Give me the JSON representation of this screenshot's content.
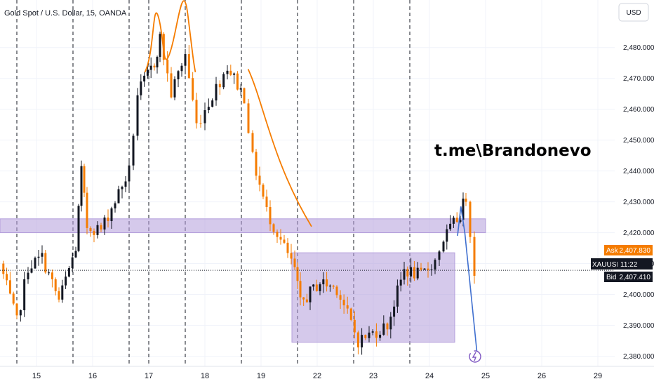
{
  "header": {
    "title": "Gold Spot / U.S. Dollar, 15, OANDA",
    "currency_label": "USD"
  },
  "annotation": {
    "text": "t.me\\Brandonevo"
  },
  "price_badges": {
    "ask_label": "Ask",
    "ask_value": "2,407.830",
    "symbol_label": "XAUUSD",
    "countdown": "11:22",
    "bid_label": "Bid",
    "bid_value": "2,407.410"
  },
  "colors": {
    "up_candle": "#131722",
    "down_candle": "#f57c00",
    "zone_fill": "#b39ddb",
    "arc_line": "#f57c00",
    "arrow_line": "#3f6fcf",
    "ask_badge": "#f57c00",
    "bid_badge": "#131722",
    "pattern_icon": "#7e57c2"
  },
  "chart_data": {
    "type": "candlestick",
    "title": "Gold Spot / U.S. Dollar, 15, OANDA",
    "currency": "USD",
    "y_ticks": [
      2380,
      2390,
      2400,
      2410,
      2420,
      2430,
      2440,
      2450,
      2460,
      2470,
      2480
    ],
    "y_tick_labels": [
      "2,380.000",
      "2,390.000",
      "2,400.000",
      "2,410.000",
      "2,420.000",
      "2,430.000",
      "2,440.000",
      "2,450.000",
      "2,460.000",
      "2,470.000",
      "2,480.000"
    ],
    "ylim": [
      2376.7,
      2495.4
    ],
    "x_labels": [
      {
        "label": "15",
        "t": 0.65
      },
      {
        "label": "16",
        "t": 1.65
      },
      {
        "label": "17",
        "t": 2.65
      },
      {
        "label": "18",
        "t": 3.65
      },
      {
        "label": "19",
        "t": 4.65
      },
      {
        "label": "22",
        "t": 5.65
      },
      {
        "label": "23",
        "t": 6.65
      },
      {
        "label": "24",
        "t": 7.65
      },
      {
        "label": "25",
        "t": 8.65
      },
      {
        "label": "26",
        "t": 9.65
      },
      {
        "label": "29",
        "t": 10.65
      }
    ],
    "xlim": [
      0,
      10.98
    ],
    "session_breaks": [
      0.3,
      1.3,
      2.3,
      2.65,
      3.3,
      4.3,
      5.3,
      6.3,
      7.3
    ],
    "key_prices": [
      {
        "t": 0.0,
        "price": 2410
      },
      {
        "t": 0.3,
        "price": 2391
      },
      {
        "t": 0.5,
        "price": 2409
      },
      {
        "t": 0.75,
        "price": 2412
      },
      {
        "t": 1.05,
        "price": 2398
      },
      {
        "t": 1.35,
        "price": 2415
      },
      {
        "t": 1.45,
        "price": 2440
      },
      {
        "t": 1.55,
        "price": 2422
      },
      {
        "t": 1.8,
        "price": 2421
      },
      {
        "t": 2.3,
        "price": 2440
      },
      {
        "t": 2.45,
        "price": 2465
      },
      {
        "t": 2.75,
        "price": 2475
      },
      {
        "t": 2.85,
        "price": 2483
      },
      {
        "t": 3.05,
        "price": 2465
      },
      {
        "t": 3.3,
        "price": 2478
      },
      {
        "t": 3.5,
        "price": 2455
      },
      {
        "t": 3.65,
        "price": 2460
      },
      {
        "t": 4.05,
        "price": 2474
      },
      {
        "t": 4.35,
        "price": 2464
      },
      {
        "t": 4.5,
        "price": 2444
      },
      {
        "t": 4.75,
        "price": 2427
      },
      {
        "t": 5.25,
        "price": 2408
      },
      {
        "t": 5.35,
        "price": 2397
      },
      {
        "t": 5.7,
        "price": 2404
      },
      {
        "t": 6.0,
        "price": 2402
      },
      {
        "t": 6.38,
        "price": 2385
      },
      {
        "t": 6.9,
        "price": 2390
      },
      {
        "t": 7.2,
        "price": 2408
      },
      {
        "t": 7.5,
        "price": 2406
      },
      {
        "t": 7.75,
        "price": 2411
      },
      {
        "t": 7.9,
        "price": 2418
      },
      {
        "t": 8.2,
        "price": 2426
      },
      {
        "t": 8.3,
        "price": 2432
      },
      {
        "t": 8.45,
        "price": 2408
      }
    ],
    "zones": [
      {
        "t1": 0.0,
        "t2": 8.65,
        "p1": 2420,
        "p2": 2424.5
      },
      {
        "t1": 5.2,
        "t2": 8.1,
        "p1": 2384.5,
        "p2": 2413.5
      }
    ],
    "current_price": 2407.83,
    "projection": {
      "t1": 8.25,
      "p1": 2428.5,
      "t2": 8.5,
      "p2": 2380.5
    }
  }
}
